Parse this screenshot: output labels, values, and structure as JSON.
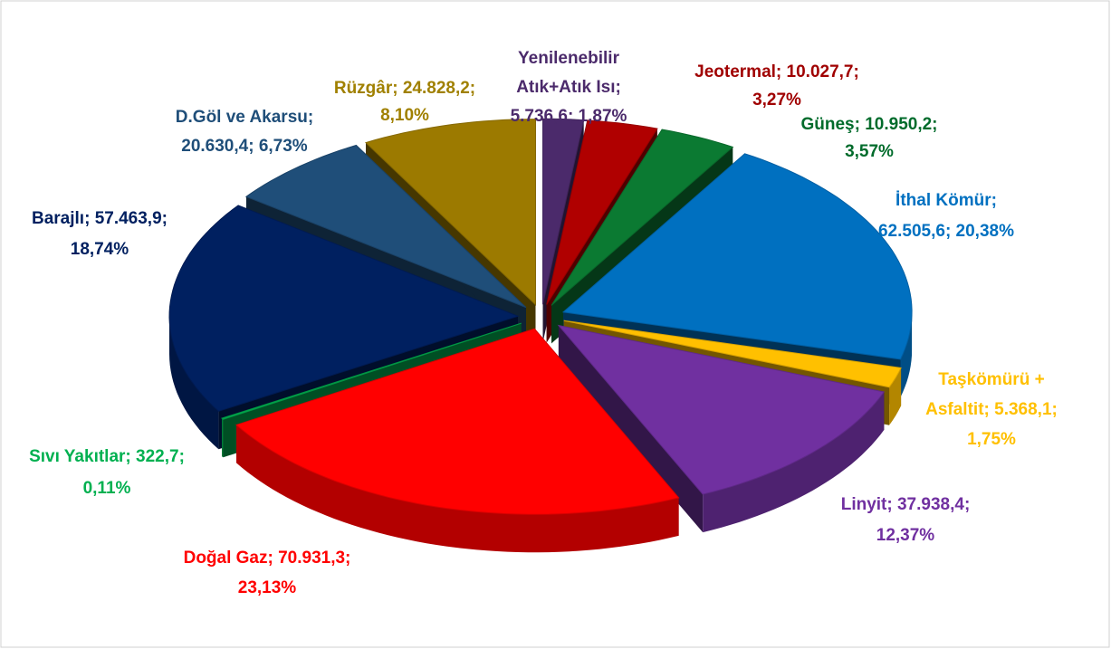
{
  "chart_data": {
    "type": "pie3d",
    "categories": [
      "Yenilenebilir Atık+Atık Isı",
      "Jeotermal",
      "Güneş",
      "İthal Kömür",
      "Taşkömürü + Asfaltit",
      "Linyit",
      "Doğal Gaz",
      "Sıvı Yakıtlar",
      "Barajlı",
      "D.Göl ve Akarsu",
      "Rüzgâr"
    ],
    "values": [
      5736.6,
      10027.7,
      10950.2,
      62505.6,
      5368.1,
      37938.4,
      70931.3,
      322.7,
      57463.9,
      20630.4,
      24828.2
    ],
    "value_labels": [
      [
        "Yenilenebilir",
        "Atık+Atık Isı;",
        "5.736,6; 1,87%"
      ],
      [
        "Jeotermal; 10.027,7;",
        "3,27%"
      ],
      [
        "Güneş; 10.950,2;",
        "3,57%"
      ],
      [
        "İthal Kömür;",
        "62.505,6; 20,38%"
      ],
      [
        "Taşkömürü +",
        "Asfaltit; 5.368,1;",
        "1,75%"
      ],
      [
        "Linyit; 37.938,4;",
        "12,37%"
      ],
      [
        "Doğal Gaz; 70.931,3;",
        "23,13%"
      ],
      [
        "Sıvı Yakıtlar; 322,7;",
        "0,11%"
      ],
      [
        "Barajlı; 57.463,9;",
        "18,74%"
      ],
      [
        "D.Göl ve Akarsu;",
        "20.630,4; 6,73%"
      ],
      [
        "Rüzgâr; 24.828,2;",
        "8,10%"
      ]
    ],
    "colors": [
      "#4b2a6b",
      "#b00000",
      "#0b7a32",
      "#0070c0",
      "#ffc000",
      "#7030a0",
      "#ff0000",
      "#00b050",
      "#002060",
      "#1f4e79",
      "#9c7a00"
    ],
    "label_colors": [
      "#4b2a6b",
      "#a00000",
      "#006b2b",
      "#0070c0",
      "#ffc000",
      "#7030a0",
      "#ff0000",
      "#00b050",
      "#002060",
      "#1f4e79",
      "#a08000"
    ]
  }
}
